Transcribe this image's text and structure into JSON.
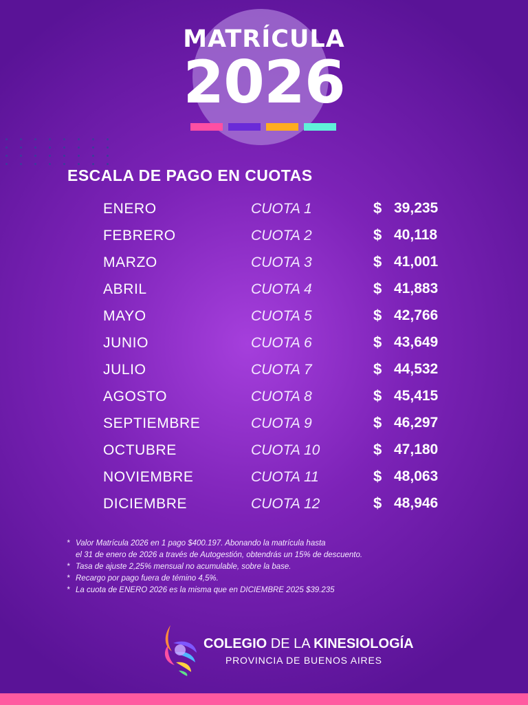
{
  "header": {
    "title": "MATRÍCULA",
    "year": "2026",
    "color_bars": [
      "#ff4fa3",
      "#6a2bd8",
      "#ffad1f",
      "#5ff0d9"
    ]
  },
  "section_title": "ESCALA DE PAGO EN CUOTAS",
  "schedule": {
    "currency_symbol": "$",
    "rows": [
      {
        "month": "ENERO",
        "cuota": "CUOTA 1",
        "amount": "39,235"
      },
      {
        "month": "FEBRERO",
        "cuota": "CUOTA 2",
        "amount": "40,118"
      },
      {
        "month": "MARZO",
        "cuota": "CUOTA 3",
        "amount": "41,001"
      },
      {
        "month": "ABRIL",
        "cuota": "CUOTA 4",
        "amount": "41,883"
      },
      {
        "month": "MAYO",
        "cuota": "CUOTA 5",
        "amount": "42,766"
      },
      {
        "month": "JUNIO",
        "cuota": "CUOTA 6",
        "amount": "43,649"
      },
      {
        "month": "JULIO",
        "cuota": "CUOTA 7",
        "amount": "44,532"
      },
      {
        "month": "AGOSTO",
        "cuota": "CUOTA 8",
        "amount": "45,415"
      },
      {
        "month": "SEPTIEMBRE",
        "cuota": "CUOTA 9",
        "amount": "46,297"
      },
      {
        "month": "OCTUBRE",
        "cuota": "CUOTA 10",
        "amount": "47,180"
      },
      {
        "month": "NOVIEMBRE",
        "cuota": "CUOTA 11",
        "amount": "48,063"
      },
      {
        "month": "DICIEMBRE",
        "cuota": "CUOTA 12",
        "amount": "48,946"
      }
    ]
  },
  "notes": {
    "marker": "*",
    "line1": "Valor Matrícula 2026 en 1 pago $400.197. Abonando la matrícula hasta",
    "line1_cont": "el 31 de enero de 2026 a través de Autogestión, obtendrás un 15% de descuento.",
    "line2": "Tasa de ajuste 2,25% mensual no acumulable, sobre la base.",
    "line3": "Recargo por pago fuera de témino 4,5%.",
    "line4": "La cuota de ENERO 2026 es la misma que en DICIEMBRE 2025 $39.235"
  },
  "footer": {
    "logo_icon": "kinesiology-swirl-logo",
    "org_name_part1": "COLEGIO",
    "org_name_part2": "DE LA",
    "org_name_part3": "KINESIOLOGÍA",
    "org_subtitle": "PROVINCIA DE BUENOS AIRES",
    "bottom_bar_color": "#ff5aa0"
  }
}
